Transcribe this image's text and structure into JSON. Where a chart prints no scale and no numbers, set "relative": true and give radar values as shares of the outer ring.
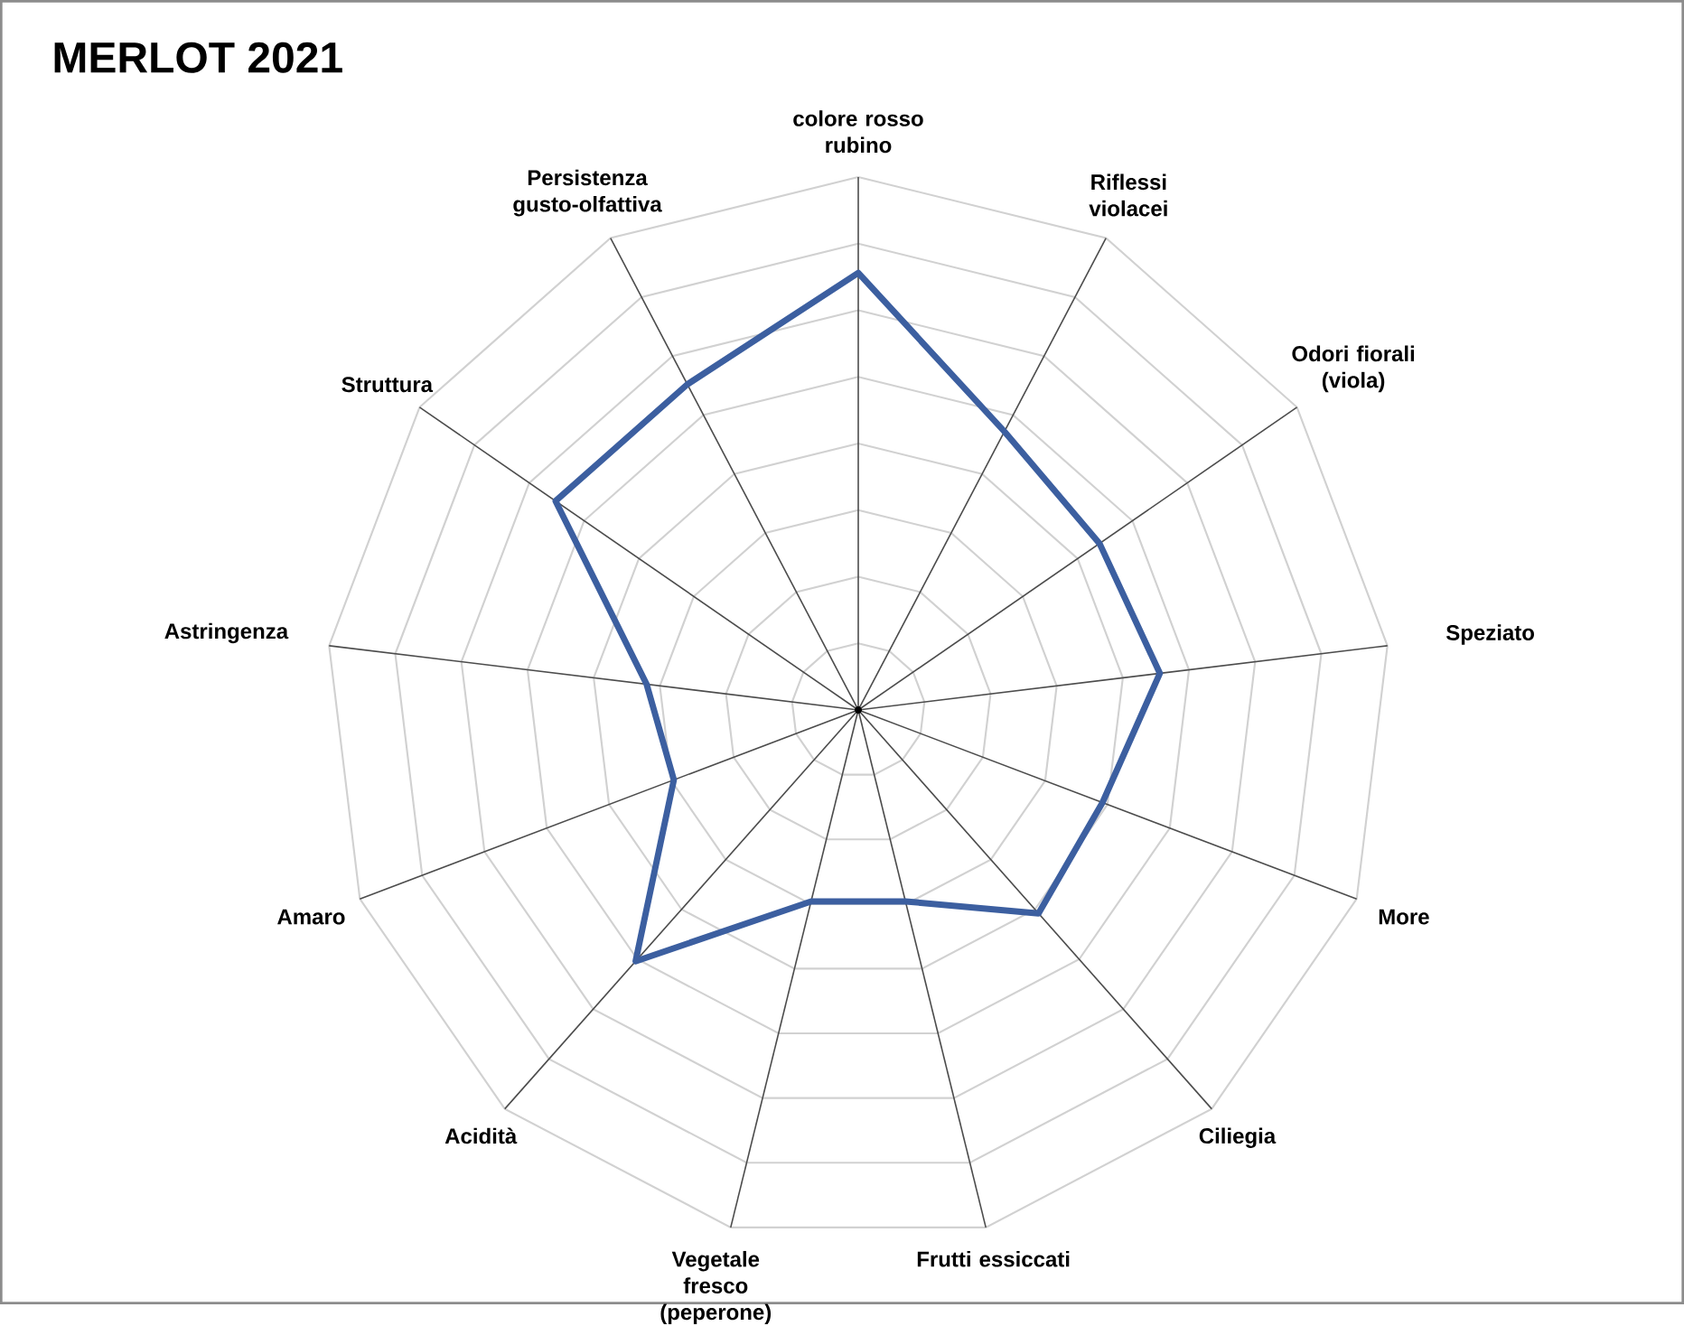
{
  "chart_data": {
    "type": "radar",
    "title": "MERLOT 2021",
    "relative": true,
    "grid": true,
    "categories": [
      "colore rosso rubino",
      "Riflessi violacei",
      "Odori fiorali (viola)",
      "Speziato",
      "More",
      "Ciliegia",
      "Frutti essiccati",
      "Vegetale fresco (peperone)",
      "Acidità",
      "Amaro",
      "Astringenza",
      "Struttura",
      "Persistenza gusto-olfattiva"
    ],
    "series": [
      {
        "color": "#3c5fa0",
        "values": [
          0.82,
          0.59,
          0.55,
          0.57,
          0.49,
          0.51,
          0.37,
          0.37,
          0.63,
          0.37,
          0.4,
          0.69,
          0.69
        ]
      }
    ]
  }
}
